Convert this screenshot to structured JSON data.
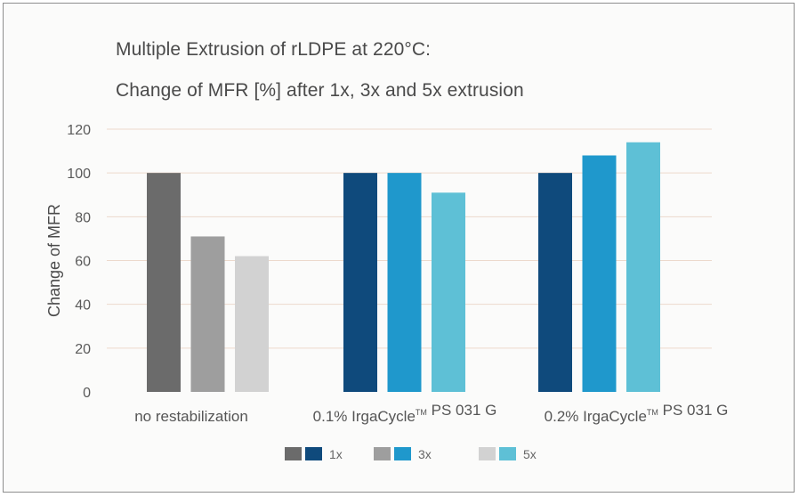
{
  "chart_data": {
    "type": "bar",
    "title": "Multiple Extrusion of rLDPE at 220°C:",
    "subtitle": "Change of MFR [%] after 1x, 3x and 5x extrusion",
    "ylabel": "Change of MFR",
    "xlabel": "",
    "ylim": [
      0,
      120
    ],
    "yticks": [
      0,
      20,
      40,
      60,
      80,
      100,
      120
    ],
    "grid": true,
    "legend_position": "bottom",
    "groups": [
      {
        "label_parts": [
          "no restabilization"
        ],
        "values": [
          100,
          71,
          62
        ],
        "colors": [
          "#6b6b6b",
          "#9e9e9e",
          "#d2d2d2"
        ]
      },
      {
        "label_parts": [
          "0.1% IrgaCycle",
          "TM",
          " PS 031 G"
        ],
        "values": [
          100,
          100,
          91
        ],
        "colors": [
          "#0f4a7c",
          "#1f98cc",
          "#5ec0d6"
        ]
      },
      {
        "label_parts": [
          "0.2% IrgaCycle",
          "TM",
          " PS 031 G"
        ],
        "values": [
          100,
          108,
          114
        ],
        "colors": [
          "#0f4a7c",
          "#1f98cc",
          "#5ec0d6"
        ]
      }
    ],
    "series": [
      {
        "name": "1x",
        "gray": "#6b6b6b",
        "blue": "#0f4a7c"
      },
      {
        "name": "3x",
        "gray": "#9e9e9e",
        "blue": "#1f98cc"
      },
      {
        "name": "5x",
        "gray": "#d2d2d2",
        "blue": "#5ec0d6"
      }
    ]
  }
}
